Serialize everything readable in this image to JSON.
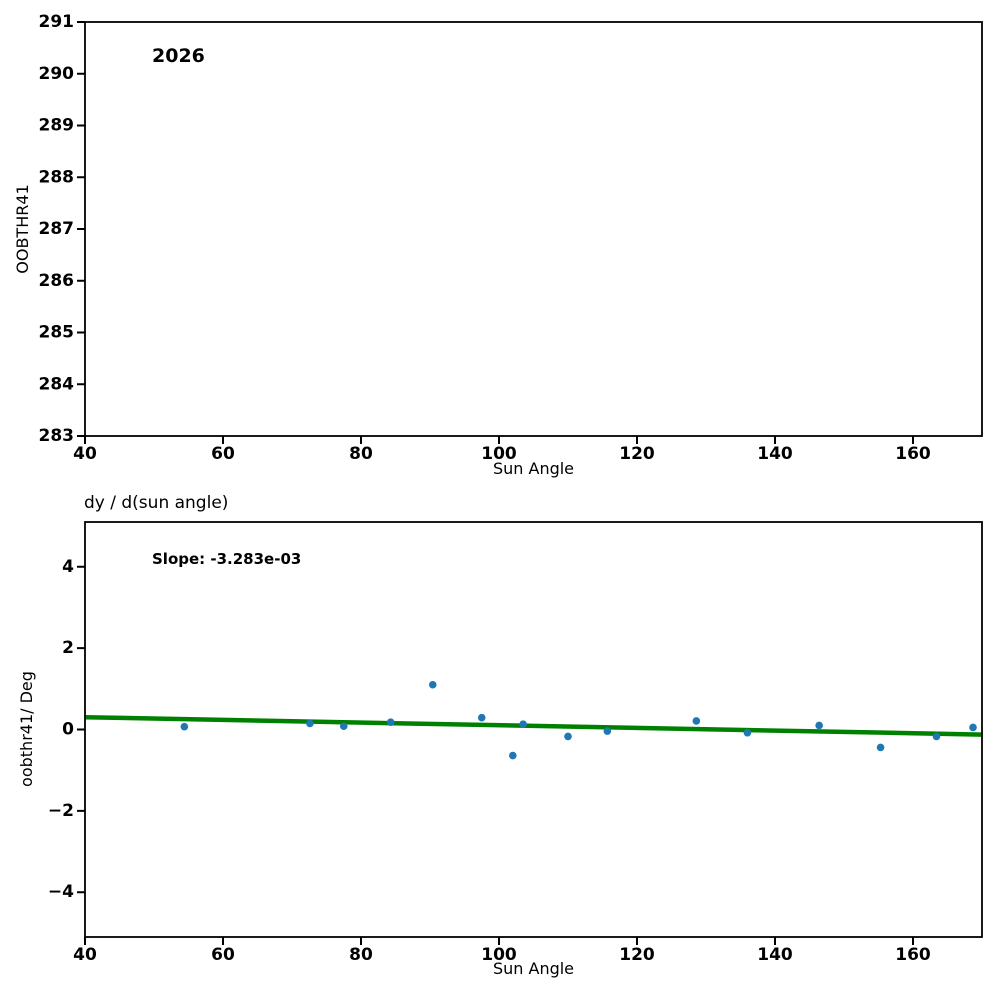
{
  "figure": {
    "background": "#ffffff",
    "text_color": "#000000",
    "scatter_color": "#1f77b4",
    "trend_color": "#008000"
  },
  "chart_data": [
    {
      "type": "scatter",
      "title": "",
      "annotation": "2026",
      "xlabel": "Sun Angle",
      "ylabel": "OOBTHR41",
      "xlim": [
        40,
        170
      ],
      "ylim": [
        283,
        291
      ],
      "xticks": [
        40,
        60,
        80,
        100,
        120,
        140,
        160
      ],
      "yticks": [
        283,
        284,
        285,
        286,
        287,
        288,
        289,
        290,
        291
      ],
      "grid": false,
      "points": []
    },
    {
      "type": "scatter",
      "title": "dy / d(sun angle)",
      "annotation": "Slope: -3.283e-03",
      "slope": -0.003283,
      "xlabel": "Sun Angle",
      "ylabel": "oobthr41/ Deg",
      "xlim": [
        40,
        170
      ],
      "ylim": [
        -5.1,
        5.1
      ],
      "xticks": [
        40,
        60,
        80,
        100,
        120,
        140,
        160
      ],
      "yticks": [
        -4,
        -2,
        0,
        2,
        4
      ],
      "grid": false,
      "points": [
        [
          54.4,
          0.07
        ],
        [
          72.6,
          0.15
        ],
        [
          77.5,
          0.08
        ],
        [
          84.3,
          0.18
        ],
        [
          90.4,
          1.1
        ],
        [
          97.5,
          0.29
        ],
        [
          102.0,
          -0.64
        ],
        [
          103.5,
          0.13
        ],
        [
          110.0,
          -0.17
        ],
        [
          115.7,
          -0.04
        ],
        [
          128.6,
          0.21
        ],
        [
          136.0,
          -0.08
        ],
        [
          146.4,
          0.1
        ],
        [
          155.3,
          -0.44
        ],
        [
          163.4,
          -0.17
        ],
        [
          168.7,
          0.05
        ]
      ],
      "trend_line": {
        "x": [
          40,
          170
        ],
        "y": [
          0.302,
          -0.125
        ]
      }
    }
  ]
}
